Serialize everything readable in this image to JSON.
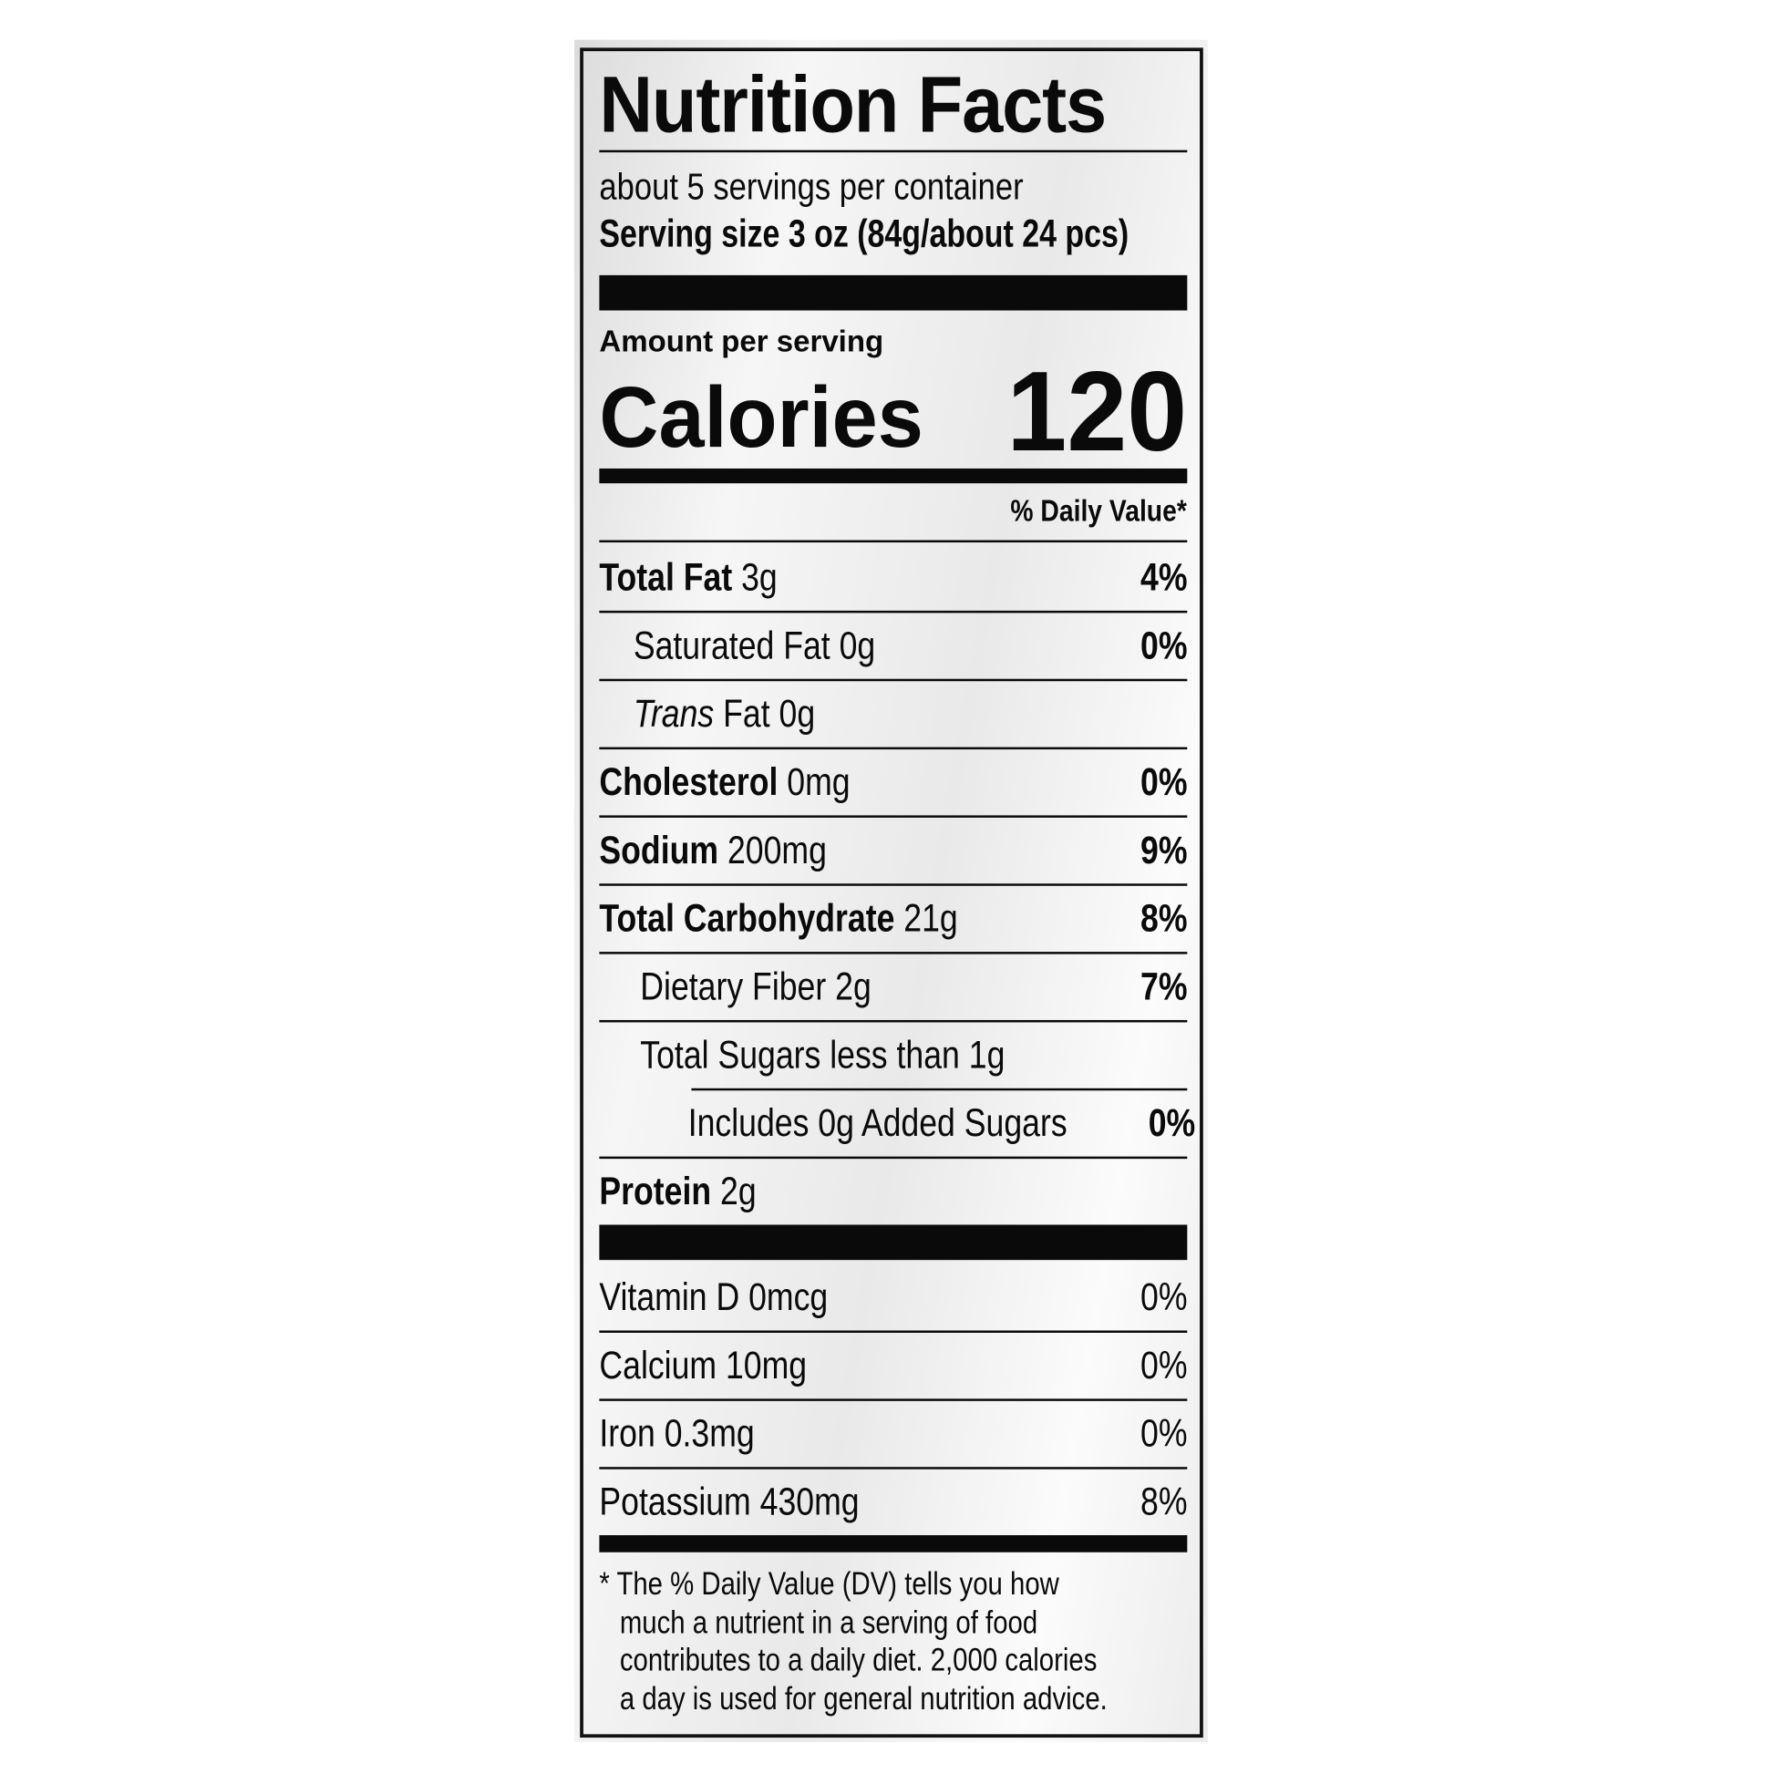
{
  "label": {
    "title": "Nutrition Facts",
    "servings_per_container": "about 5 servings per container",
    "serving_size": "Serving size 3 oz (84g/about 24 pcs)",
    "amount_per_serving": "Amount per serving",
    "calories_label": "Calories",
    "calories_value": "120",
    "daily_value_header": "% Daily Value*",
    "nutrients": [
      {
        "name": "Total Fat",
        "amount": "3g",
        "dv": "4%",
        "bold": true,
        "indent": 0
      },
      {
        "name": "Saturated Fat",
        "amount": "0g",
        "dv": "0%",
        "bold": false,
        "indent": 1
      },
      {
        "name": "Trans",
        "name_suffix": "Fat",
        "amount": "0g",
        "dv": "",
        "bold": false,
        "italic_prefix": true,
        "indent": 1
      },
      {
        "name": "Cholesterol",
        "amount": "0mg",
        "dv": "0%",
        "bold": true,
        "indent": 0
      },
      {
        "name": "Sodium",
        "amount": "200mg",
        "dv": "9%",
        "bold": true,
        "indent": 0
      },
      {
        "name": "Total Carbohydrate",
        "amount": "21g",
        "dv": "8%",
        "bold": true,
        "indent": 0
      },
      {
        "name": "Dietary Fiber",
        "amount": "2g",
        "dv": "7%",
        "bold": false,
        "indent": 1
      },
      {
        "name": "Total Sugars",
        "amount": "less than 1g",
        "dv": "",
        "bold": false,
        "indent": 1
      },
      {
        "name": "Includes 0g Added Sugars",
        "amount": "",
        "dv": "0%",
        "bold": false,
        "indent": 2
      },
      {
        "name": "Protein",
        "amount": "2g",
        "dv": "",
        "bold": true,
        "indent": 0
      }
    ],
    "vitamins": [
      {
        "name": "Vitamin D",
        "amount": "0mcg",
        "dv": "0%"
      },
      {
        "name": "Calcium",
        "amount": "10mg",
        "dv": "0%"
      },
      {
        "name": "Iron",
        "amount": "0.3mg",
        "dv": "0%"
      },
      {
        "name": "Potassium",
        "amount": "430mg",
        "dv": "8%"
      }
    ],
    "footnote": [
      "* The % Daily Value (DV) tells you how",
      "much a nutrient in a serving of food",
      "contributes to a daily diet. 2,000 calories",
      "a day is used for general nutrition advice."
    ]
  }
}
